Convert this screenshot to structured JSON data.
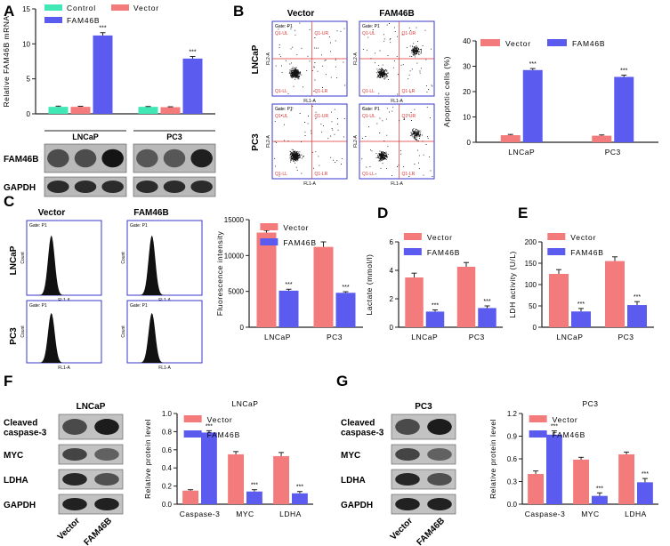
{
  "colors": {
    "control": "#3fe8b4",
    "vector": "#f47b7b",
    "fam46b": "#5b5bf0",
    "axis": "#222222",
    "blot": "#2a2a2a",
    "flow": "#3a3acc"
  },
  "panels": {
    "A": "A",
    "B": "B",
    "C": "C",
    "D": "D",
    "E": "E",
    "F": "F",
    "G": "G"
  },
  "sig": "***",
  "panelA": {
    "blot_rows": [
      "FAM46B",
      "GAPDH"
    ],
    "cell_lines": [
      "LNCaP",
      "PC3"
    ]
  },
  "panelB": {
    "col_titles": [
      "Vector",
      "FAM46B"
    ],
    "row_titles": [
      "LNCaP",
      "PC3"
    ],
    "gate": "Gate: P1",
    "q_ul": "Q1-UL",
    "q_ur": "Q1-UR",
    "q_ll": "Q1-LL",
    "q_lr": "Q1-LR",
    "xaxis": "FL1-A",
    "yaxis": "FL2-A"
  },
  "panelC": {
    "col_titles": [
      "Vector",
      "FAM46B"
    ],
    "row_titles": [
      "LNCaP",
      "PC3"
    ],
    "gate": "Gate: P1",
    "xaxis": "FL1-A",
    "yaxis": "Count"
  },
  "panelF": {
    "title": "LNCaP",
    "blots": [
      "Cleaved\ncaspase-3",
      "MYC",
      "LDHA",
      "GAPDH"
    ],
    "lanes": [
      "Vector",
      "FAM46B"
    ]
  },
  "panelG": {
    "title": "PC3",
    "blots": [
      "Cleaved\ncaspase-3",
      "MYC",
      "LDHA",
      "GAPDH"
    ],
    "lanes": [
      "Vector",
      "FAM46B"
    ]
  },
  "chart_data": [
    {
      "id": "A",
      "type": "bar",
      "title": "",
      "ylabel": "Relative FAM46B mRNA",
      "categories": [
        "LNCaP",
        "PC3"
      ],
      "ylim": [
        0,
        15
      ],
      "yticks": [
        0,
        5,
        10,
        15
      ],
      "series": [
        {
          "name": "Control",
          "color": "control",
          "values": [
            1.0,
            1.0
          ],
          "err": [
            0.1,
            0.05
          ]
        },
        {
          "name": "Vector",
          "color": "vector",
          "values": [
            1.0,
            0.95
          ],
          "err": [
            0.08,
            0.06
          ]
        },
        {
          "name": "FAM46B",
          "color": "fam46b",
          "values": [
            11.2,
            7.9
          ],
          "err": [
            0.4,
            0.3
          ]
        }
      ],
      "sig_series": 2,
      "show_xlabels": false
    },
    {
      "id": "B",
      "type": "bar",
      "title": "",
      "ylabel": "Apoptotic cells (%)",
      "categories": [
        "LNCaP",
        "PC3"
      ],
      "ylim": [
        0,
        40
      ],
      "yticks": [
        0,
        10,
        20,
        30,
        40
      ],
      "series": [
        {
          "name": "Vector",
          "color": "vector",
          "values": [
            2.8,
            2.6
          ],
          "err": [
            0.3,
            0.3
          ]
        },
        {
          "name": "FAM46B",
          "color": "fam46b",
          "values": [
            28.5,
            25.8
          ],
          "err": [
            0.6,
            0.7
          ]
        }
      ],
      "sig_series": 1,
      "show_xlabels": true
    },
    {
      "id": "C",
      "type": "bar",
      "title": "",
      "ylabel": "Fluorescence intensity",
      "categories": [
        "LNCaP",
        "PC3"
      ],
      "ylim": [
        0,
        15000
      ],
      "yticks": [
        0,
        5000,
        10000,
        15000
      ],
      "series": [
        {
          "name": "Vector",
          "color": "vector",
          "values": [
            13200,
            11200
          ],
          "err": [
            300,
            700
          ]
        },
        {
          "name": "FAM46B",
          "color": "fam46b",
          "values": [
            5100,
            4800
          ],
          "err": [
            200,
            150
          ]
        }
      ],
      "sig_series": 1,
      "show_xlabels": true
    },
    {
      "id": "D",
      "type": "bar",
      "title": "",
      "ylabel": "Lactate (mmol/l)",
      "categories": [
        "LNCaP",
        "PC3"
      ],
      "ylim": [
        0,
        6
      ],
      "yticks": [
        0,
        2,
        4,
        6
      ],
      "series": [
        {
          "name": "Vector",
          "color": "vector",
          "values": [
            3.5,
            4.25
          ],
          "err": [
            0.3,
            0.3
          ]
        },
        {
          "name": "FAM46B",
          "color": "fam46b",
          "values": [
            1.1,
            1.35
          ],
          "err": [
            0.12,
            0.15
          ]
        }
      ],
      "sig_series": 1,
      "show_xlabels": true
    },
    {
      "id": "E",
      "type": "bar",
      "title": "",
      "ylabel": "LDH activity (U/L)",
      "categories": [
        "LNCaP",
        "PC3"
      ],
      "ylim": [
        0,
        200
      ],
      "yticks": [
        0,
        50,
        100,
        150,
        200
      ],
      "series": [
        {
          "name": "Vector",
          "color": "vector",
          "values": [
            125,
            155
          ],
          "err": [
            10,
            10
          ]
        },
        {
          "name": "FAM46B",
          "color": "fam46b",
          "values": [
            37,
            52
          ],
          "err": [
            7,
            8
          ]
        }
      ],
      "sig_series": 1,
      "show_xlabels": true
    },
    {
      "id": "F",
      "type": "bar",
      "title": "LNCaP",
      "ylabel": "Relative protein level",
      "categories": [
        "Caspase-3",
        "MYC",
        "LDHA"
      ],
      "ylim": [
        0,
        1.0
      ],
      "yticks": [
        0,
        0.2,
        0.4,
        0.6,
        0.8,
        1.0
      ],
      "series": [
        {
          "name": "Vector",
          "color": "vector",
          "values": [
            0.15,
            0.55,
            0.53
          ],
          "err": [
            0.01,
            0.03,
            0.04
          ]
        },
        {
          "name": "FAM46B",
          "color": "fam46b",
          "values": [
            0.79,
            0.14,
            0.12
          ],
          "err": [
            0.02,
            0.02,
            0.02
          ]
        }
      ],
      "sig_series": 1,
      "show_xlabels": true
    },
    {
      "id": "G",
      "type": "bar",
      "title": "PC3",
      "ylabel": "Relative protein level",
      "categories": [
        "Caspase-3",
        "MYC",
        "LDHA"
      ],
      "ylim": [
        0,
        1.2
      ],
      "yticks": [
        0,
        0.3,
        0.6,
        0.9,
        1.2
      ],
      "series": [
        {
          "name": "Vector",
          "color": "vector",
          "values": [
            0.4,
            0.59,
            0.66
          ],
          "err": [
            0.04,
            0.03,
            0.03
          ]
        },
        {
          "name": "FAM46B",
          "color": "fam46b",
          "values": [
            0.92,
            0.11,
            0.29
          ],
          "err": [
            0.05,
            0.04,
            0.05
          ]
        }
      ],
      "sig_series": 1,
      "show_xlabels": true
    }
  ]
}
